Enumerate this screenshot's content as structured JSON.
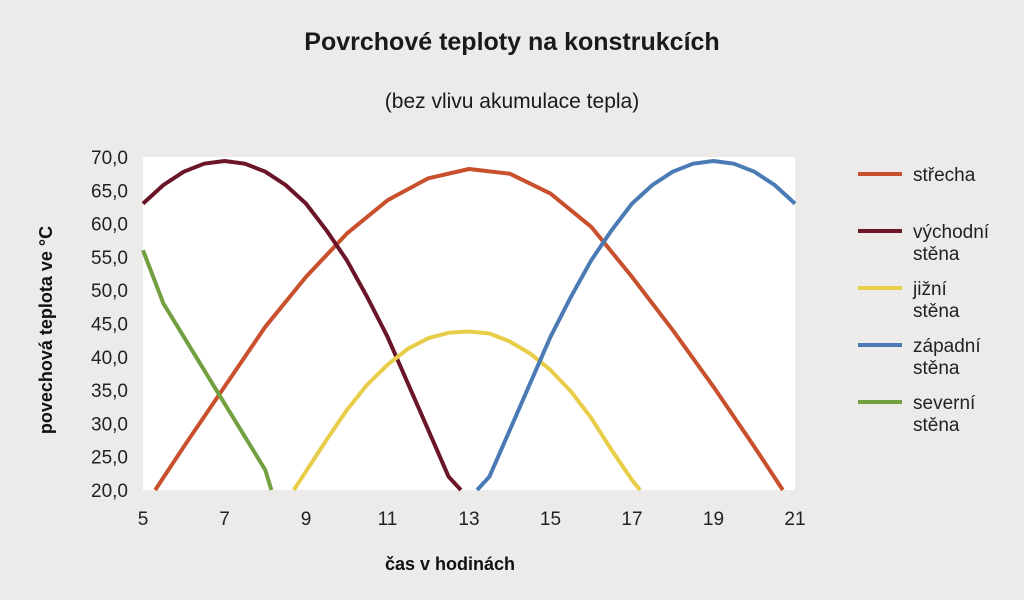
{
  "chart_data": {
    "type": "line",
    "title": "Povrchové teploty na konstrukcích",
    "subtitle": "(bez vlivu akumulace tepla)",
    "xlabel": "čas v hodinách",
    "ylabel": "povechová teplota ve °C",
    "xlim": [
      5,
      21
    ],
    "ylim": [
      20,
      70
    ],
    "x_ticks": [
      5,
      7,
      9,
      11,
      13,
      15,
      17,
      19,
      21
    ],
    "y_ticks": [
      "20,0",
      "25,0",
      "30,0",
      "35,0",
      "40,0",
      "45,0",
      "50,0",
      "55,0",
      "60,0",
      "65,0",
      "70,0"
    ],
    "grid": false,
    "legend_position": "right",
    "series": [
      {
        "name": "střecha",
        "color": "#c8502d",
        "x": [
          5.3,
          6,
          7,
          8,
          9,
          10,
          11,
          12,
          13,
          14,
          15,
          16,
          17,
          18,
          19,
          20,
          20.7
        ],
        "y": [
          20.0,
          26.5,
          35.5,
          44.5,
          52.0,
          58.5,
          63.5,
          66.8,
          68.2,
          67.5,
          64.5,
          59.5,
          52.0,
          44.0,
          35.5,
          26.5,
          20.0
        ]
      },
      {
        "name": "východní stěna",
        "color": "#6b1528",
        "x": [
          5,
          5.5,
          6,
          6.5,
          7,
          7.5,
          8,
          8.5,
          9,
          9.5,
          10,
          10.5,
          11,
          11.5,
          12,
          12.5,
          12.8
        ],
        "y": [
          63.0,
          65.8,
          67.8,
          69.0,
          69.4,
          69.0,
          67.8,
          65.8,
          63.0,
          59.0,
          54.5,
          49.0,
          43.0,
          36.0,
          29.0,
          22.0,
          20.0
        ]
      },
      {
        "name": "jižní stěna",
        "color": "#e8cd48",
        "x": [
          8.7,
          9.5,
          10,
          10.5,
          11,
          11.5,
          12,
          12.5,
          13,
          13.5,
          14,
          14.5,
          15,
          15.5,
          16,
          16.5,
          17,
          17.2
        ],
        "y": [
          20.0,
          27.5,
          32.0,
          35.8,
          38.8,
          41.2,
          42.8,
          43.6,
          43.8,
          43.5,
          42.3,
          40.5,
          38.0,
          34.8,
          30.8,
          26.0,
          21.5,
          20.0
        ]
      },
      {
        "name": "západní stěna",
        "color": "#4a7bb5",
        "x": [
          13.2,
          13.5,
          14,
          14.5,
          15,
          15.5,
          16,
          16.5,
          17,
          17.5,
          18,
          18.5,
          19,
          19.5,
          20,
          20.5,
          21
        ],
        "y": [
          20.0,
          22.0,
          29.0,
          36.0,
          43.0,
          49.0,
          54.5,
          59.0,
          63.0,
          65.8,
          67.8,
          69.0,
          69.4,
          69.0,
          67.8,
          65.8,
          63.0
        ]
      },
      {
        "name": "severní stěna",
        "color": "#72a040",
        "x": [
          5,
          5.5,
          6,
          6.5,
          7,
          7.5,
          8,
          8.15
        ],
        "y": [
          56.0,
          48.0,
          43.0,
          38.0,
          33.0,
          28.0,
          23.0,
          20.0
        ]
      }
    ]
  }
}
